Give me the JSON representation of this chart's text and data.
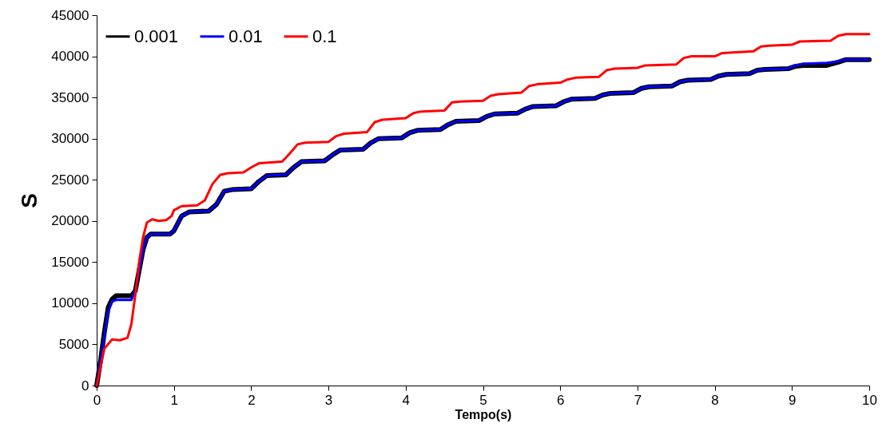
{
  "chart_data": {
    "type": "line",
    "xlabel": "Tempo(s)",
    "ylabel": "S",
    "xlim": [
      0,
      10
    ],
    "xticks": [
      0,
      1,
      2,
      3,
      4,
      5,
      6,
      7,
      8,
      9,
      10
    ],
    "ylim": [
      0,
      45000
    ],
    "yticks": [
      0,
      5000,
      10000,
      15000,
      20000,
      25000,
      30000,
      35000,
      40000,
      45000
    ],
    "grid": false,
    "legend": "top left",
    "marker": "none",
    "line_style": "solid",
    "series": [
      {
        "name": "0.001",
        "color": "#000000",
        "x": [
          0,
          0.05,
          0.1,
          0.15,
          0.2,
          0.25,
          0.45,
          0.5,
          0.55,
          0.6,
          0.65,
          0.7,
          0.95,
          1.0,
          1.1,
          1.2,
          1.45,
          1.55,
          1.65,
          1.75,
          2.0,
          2.1,
          2.2,
          2.45,
          2.55,
          2.65,
          2.95,
          3.05,
          3.15,
          3.45,
          3.55,
          3.65,
          3.95,
          4.05,
          4.15,
          4.45,
          4.55,
          4.65,
          4.95,
          5.05,
          5.15,
          5.45,
          5.55,
          5.65,
          5.95,
          6.05,
          6.15,
          6.45,
          6.55,
          6.65,
          6.95,
          7.05,
          7.15,
          7.45,
          7.55,
          7.65,
          7.95,
          8.05,
          8.15,
          8.45,
          8.55,
          8.65,
          8.95,
          9.05,
          9.15,
          9.45,
          9.6,
          9.7,
          10
        ],
        "values": [
          0,
          3000,
          6500,
          9500,
          10500,
          10900,
          10900,
          11500,
          14000,
          16500,
          18000,
          18400,
          18400,
          18800,
          20600,
          21100,
          21200,
          22000,
          23600,
          23800,
          23900,
          24800,
          25500,
          25600,
          26500,
          27200,
          27300,
          28000,
          28600,
          28700,
          29500,
          30000,
          30100,
          30700,
          31000,
          31100,
          31700,
          32100,
          32200,
          32700,
          33000,
          33100,
          33600,
          33900,
          34000,
          34500,
          34800,
          34900,
          35300,
          35500,
          35600,
          36100,
          36300,
          36400,
          36900,
          37100,
          37200,
          37600,
          37800,
          37900,
          38300,
          38400,
          38500,
          38800,
          38900,
          38900,
          39300,
          39600,
          39600
        ]
      },
      {
        "name": "0.01",
        "color": "#0000ff",
        "x": [
          0,
          0.05,
          0.1,
          0.15,
          0.2,
          0.25,
          0.45,
          0.5,
          0.55,
          0.6,
          0.65,
          0.7,
          0.95,
          1.0,
          1.1,
          1.2,
          1.45,
          1.55,
          1.65,
          1.75,
          2.0,
          2.1,
          2.2,
          2.45,
          2.55,
          2.65,
          2.95,
          3.05,
          3.15,
          3.45,
          3.55,
          3.65,
          3.95,
          4.05,
          4.15,
          4.45,
          4.55,
          4.65,
          4.95,
          5.05,
          5.15,
          5.45,
          5.55,
          5.65,
          5.95,
          6.05,
          6.15,
          6.45,
          6.55,
          6.65,
          6.95,
          7.05,
          7.15,
          7.45,
          7.55,
          7.65,
          7.95,
          8.05,
          8.15,
          8.45,
          8.55,
          8.65,
          8.95,
          9.05,
          9.15,
          9.45,
          9.6,
          9.7,
          10
        ],
        "values": [
          0,
          3000,
          6000,
          9000,
          10200,
          10400,
          10400,
          11500,
          14000,
          16500,
          18000,
          18400,
          18400,
          18800,
          20600,
          21100,
          21200,
          22000,
          23600,
          23800,
          23900,
          24800,
          25500,
          25600,
          26500,
          27200,
          27300,
          28000,
          28600,
          28700,
          29500,
          30000,
          30100,
          30700,
          31000,
          31100,
          31700,
          32100,
          32200,
          32700,
          33000,
          33100,
          33600,
          33900,
          34000,
          34500,
          34800,
          34900,
          35300,
          35500,
          35600,
          36100,
          36300,
          36400,
          36900,
          37100,
          37200,
          37600,
          37800,
          37900,
          38300,
          38400,
          38500,
          38900,
          39100,
          39200,
          39400,
          39600,
          39600
        ]
      },
      {
        "name": "0.1",
        "color": "#ff0000",
        "x": [
          0,
          0.1,
          0.2,
          0.3,
          0.4,
          0.45,
          0.5,
          0.55,
          0.6,
          0.65,
          0.72,
          0.8,
          0.9,
          0.97,
          1.0,
          1.1,
          1.3,
          1.4,
          1.5,
          1.6,
          1.7,
          1.9,
          2.0,
          2.1,
          2.4,
          2.5,
          2.6,
          2.7,
          3.0,
          3.1,
          3.2,
          3.5,
          3.6,
          3.7,
          4.0,
          4.1,
          4.2,
          4.5,
          4.6,
          4.7,
          5.0,
          5.1,
          5.2,
          5.5,
          5.6,
          5.7,
          6.0,
          6.1,
          6.2,
          6.5,
          6.6,
          6.7,
          7.0,
          7.1,
          7.5,
          7.6,
          7.7,
          8.0,
          8.1,
          8.5,
          8.6,
          8.7,
          9.0,
          9.1,
          9.5,
          9.6,
          9.7,
          10
        ],
        "values": [
          0,
          4500,
          5600,
          5500,
          5800,
          7500,
          11000,
          15000,
          18000,
          19800,
          20200,
          20000,
          20100,
          20600,
          21300,
          21800,
          21900,
          22500,
          24500,
          25600,
          25800,
          25900,
          26500,
          27000,
          27200,
          28200,
          29300,
          29500,
          29600,
          30300,
          30600,
          30800,
          32000,
          32300,
          32500,
          33100,
          33300,
          33400,
          34400,
          34500,
          34600,
          35200,
          35400,
          35600,
          36400,
          36600,
          36800,
          37200,
          37400,
          37500,
          38300,
          38500,
          38600,
          38900,
          39000,
          39800,
          40000,
          40000,
          40400,
          40600,
          41200,
          41300,
          41400,
          41800,
          41900,
          42500,
          42700,
          42700
        ]
      }
    ]
  }
}
